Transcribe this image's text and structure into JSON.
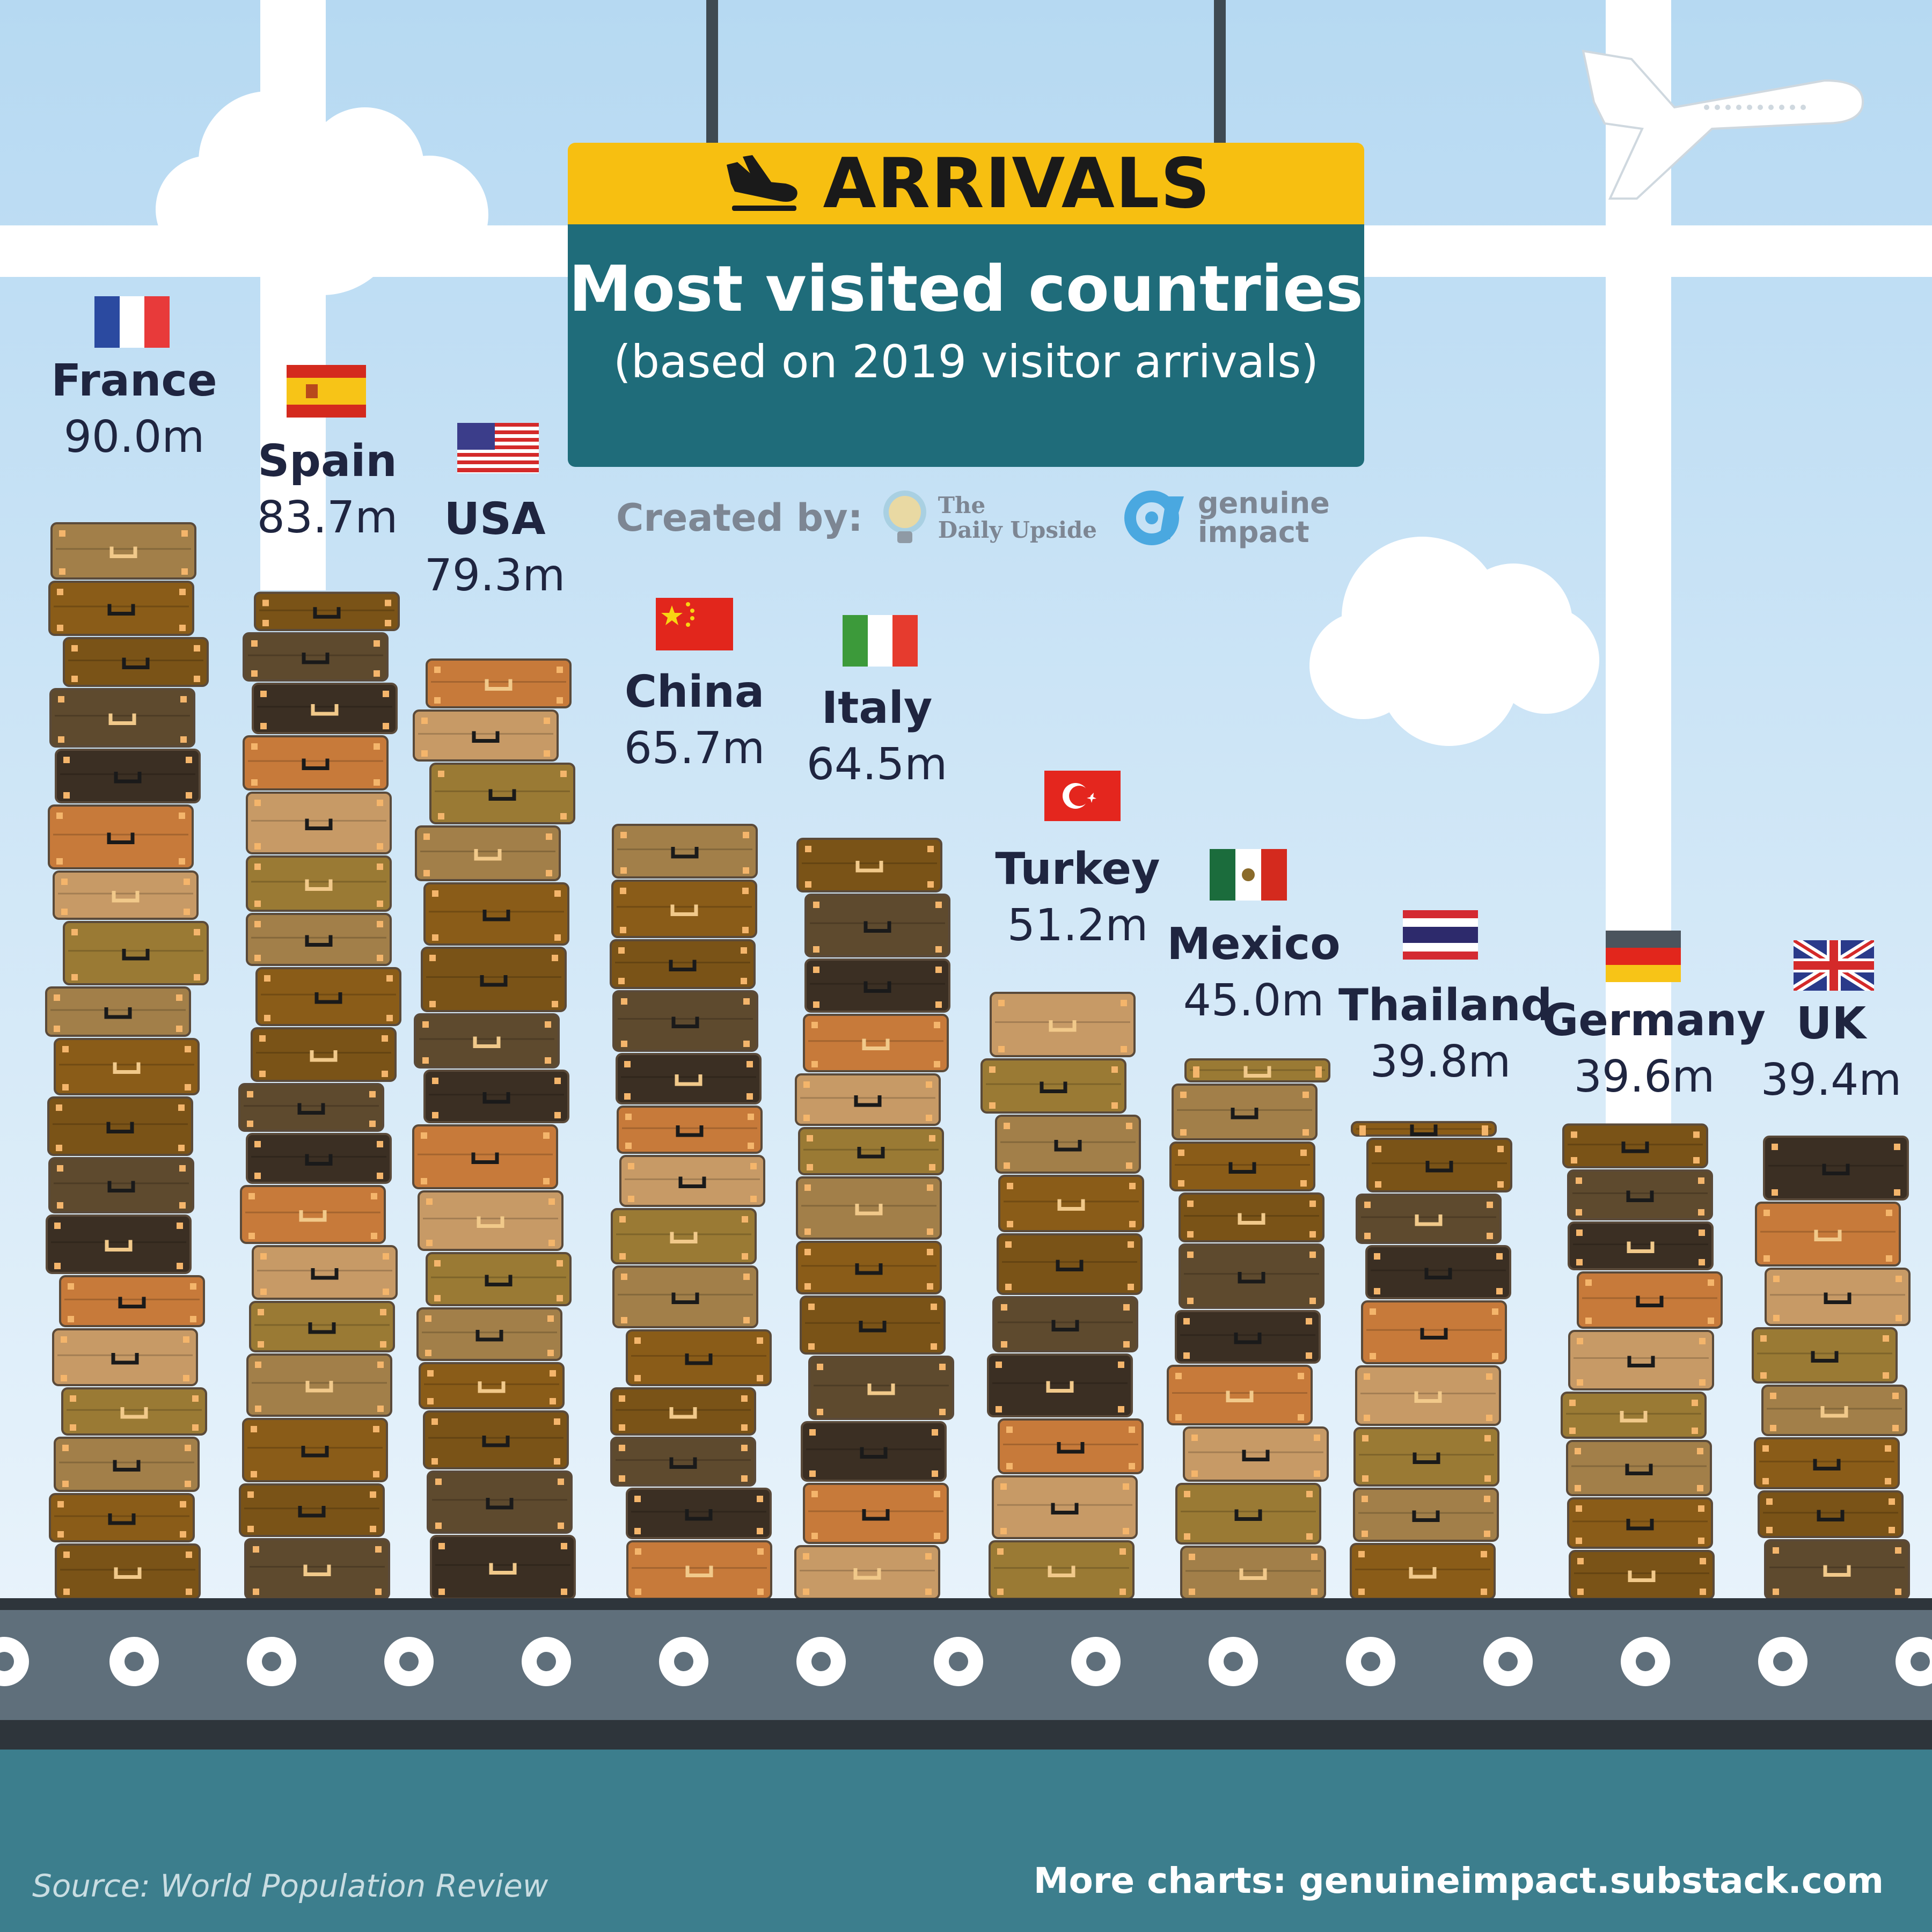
{
  "sign": {
    "header": "ARRIVALS",
    "title": "Most visited countries",
    "subtitle": "(based on 2019 visitor arrivals)"
  },
  "credits": {
    "label": "Created by:",
    "logo1_line1": "The",
    "logo1_line2": "Daily Upside",
    "logo2_line1": "genuine",
    "logo2_line2": "impact"
  },
  "footer": {
    "source": "Source: World Population Review",
    "more": "More charts: genuineimpact.substack.com"
  },
  "colors": {
    "sky_top": "#b8daf2",
    "sky_bottom": "#e6f2fb",
    "sign_yellow": "#f7bf11",
    "sign_teal": "#1f6c7a",
    "conveyor": "#5f6f7b",
    "floor": "#3c7e8d",
    "suitcases": [
      "#7a5317",
      "#c77a3a",
      "#a27f49",
      "#5e4a2e",
      "#c79a66",
      "#8a5c18",
      "#3b2f23",
      "#9a7a34"
    ]
  },
  "chart_data": {
    "type": "bar",
    "title": "Most visited countries",
    "subtitle": "(based on 2019 visitor arrivals)",
    "unit": "m",
    "categories": [
      "France",
      "Spain",
      "USA",
      "China",
      "Italy",
      "Turkey",
      "Mexico",
      "Thailand",
      "Germany",
      "UK"
    ],
    "values": [
      90.0,
      83.7,
      79.3,
      65.7,
      64.5,
      51.2,
      45.0,
      39.8,
      39.6,
      39.4
    ],
    "value_labels": [
      "90.0m",
      "83.7m",
      "79.3m",
      "65.7m",
      "64.5m",
      "51.2m",
      "45.0m",
      "39.8m",
      "39.6m",
      "39.4m"
    ],
    "flags": [
      "france-flag",
      "spain-flag",
      "usa-flag",
      "china-flag",
      "italy-flag",
      "turkey-flag",
      "mexico-flag",
      "thailand-flag",
      "germany-flag",
      "uk-flag"
    ],
    "bars_drawn_as": "stacked suitcases"
  }
}
